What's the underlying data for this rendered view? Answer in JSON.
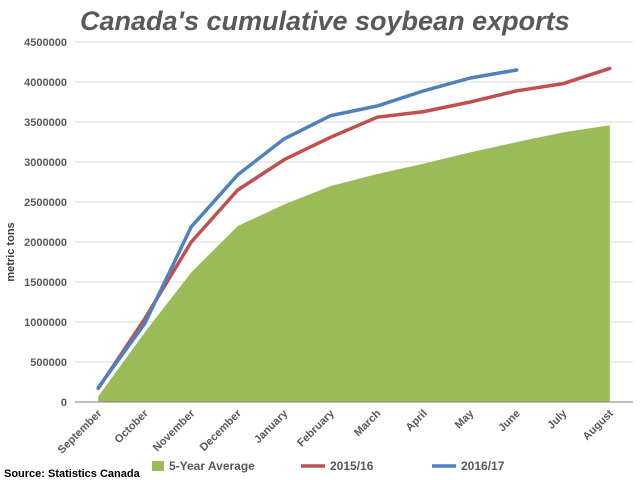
{
  "source": "Source: Statistics Canada",
  "chart_data": {
    "type": "line",
    "title": "Canada's cumulative soybean exports",
    "ylabel": "metric tons",
    "xlabel": "",
    "ylim": [
      0,
      4500000
    ],
    "yticks": [
      0,
      500000,
      1000000,
      1500000,
      2000000,
      2500000,
      3000000,
      3500000,
      4000000,
      4500000
    ],
    "grid": true,
    "legend_position": "bottom",
    "categories": [
      "September",
      "October",
      "November",
      "December",
      "January",
      "February",
      "March",
      "April",
      "May",
      "June",
      "July",
      "August"
    ],
    "series": [
      {
        "name": "5-Year Average",
        "type": "area",
        "color": "#9bbb59",
        "values": [
          70000,
          870000,
          1620000,
          2200000,
          2470000,
          2700000,
          2850000,
          2980000,
          3120000,
          3250000,
          3370000,
          3460000
        ]
      },
      {
        "name": "2015/16",
        "type": "line",
        "color": "#c0504d",
        "values": [
          170000,
          1040000,
          2000000,
          2650000,
          3030000,
          3310000,
          3560000,
          3630000,
          3750000,
          3890000,
          3980000,
          4170000
        ]
      },
      {
        "name": "2016/17",
        "type": "line",
        "color": "#4f81bd",
        "values": [
          180000,
          980000,
          2190000,
          2840000,
          3290000,
          3580000,
          3700000,
          3890000,
          4050000,
          4150000,
          null,
          null
        ]
      }
    ]
  }
}
